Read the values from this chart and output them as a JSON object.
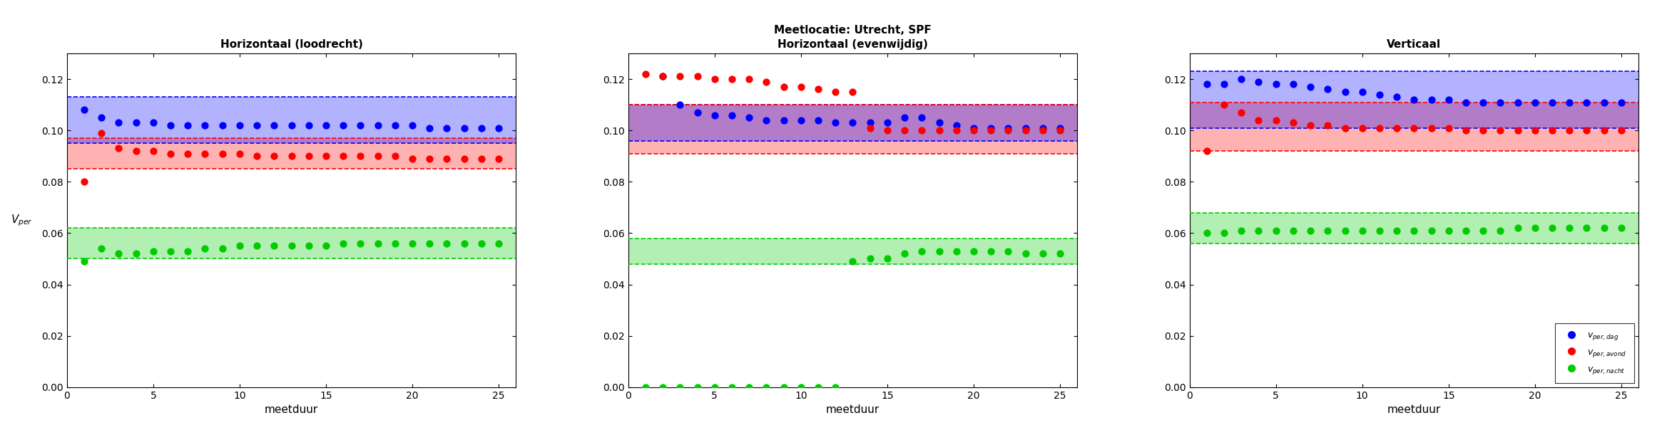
{
  "suptitle_line1": "Meetlocatie: Utrecht, SPF",
  "titles": [
    "Horizontaal (loodrecht)",
    "Horizontaal (evenwijdig)",
    "Verticaal"
  ],
  "xlabel": "meetduur",
  "ylabel": "v_{per}",
  "xlim": [
    0,
    26
  ],
  "ylim": [
    0,
    0.13
  ],
  "yticks": [
    0,
    0.02,
    0.04,
    0.06,
    0.08,
    0.1,
    0.12
  ],
  "xticks": [
    0,
    5,
    10,
    15,
    20,
    25
  ],
  "colors": {
    "blue": "#0000FF",
    "red": "#FF0000",
    "green": "#00CC00"
  },
  "subplot1": {
    "blue_points_x": [
      1,
      2,
      3,
      4,
      5,
      6,
      7,
      8,
      9,
      10,
      11,
      12,
      13,
      14,
      15,
      16,
      17,
      18,
      19,
      20,
      21,
      22,
      23,
      24,
      25
    ],
    "blue_points_y": [
      0.108,
      0.105,
      0.103,
      0.103,
      0.103,
      0.102,
      0.102,
      0.102,
      0.102,
      0.102,
      0.102,
      0.102,
      0.102,
      0.102,
      0.102,
      0.102,
      0.102,
      0.102,
      0.102,
      0.102,
      0.101,
      0.101,
      0.101,
      0.101,
      0.101
    ],
    "red_points_x": [
      1,
      2,
      3,
      4,
      5,
      6,
      7,
      8,
      9,
      10,
      11,
      12,
      13,
      14,
      15,
      16,
      17,
      18,
      19,
      20,
      21,
      22,
      23,
      24,
      25
    ],
    "red_points_y": [
      0.08,
      0.099,
      0.093,
      0.092,
      0.092,
      0.091,
      0.091,
      0.091,
      0.091,
      0.091,
      0.09,
      0.09,
      0.09,
      0.09,
      0.09,
      0.09,
      0.09,
      0.09,
      0.09,
      0.089,
      0.089,
      0.089,
      0.089,
      0.089,
      0.089
    ],
    "green_points_x": [
      1,
      2,
      3,
      4,
      5,
      6,
      7,
      8,
      9,
      10,
      11,
      12,
      13,
      14,
      15,
      16,
      17,
      18,
      19,
      20,
      21,
      22,
      23,
      24,
      25
    ],
    "green_points_y": [
      0.049,
      0.054,
      0.052,
      0.052,
      0.053,
      0.053,
      0.053,
      0.054,
      0.054,
      0.055,
      0.055,
      0.055,
      0.055,
      0.055,
      0.055,
      0.056,
      0.056,
      0.056,
      0.056,
      0.056,
      0.056,
      0.056,
      0.056,
      0.056,
      0.056
    ],
    "blue_band": [
      0.095,
      0.113
    ],
    "red_band": [
      0.085,
      0.097
    ],
    "green_band": [
      0.05,
      0.062
    ]
  },
  "subplot2": {
    "blue_points_x": [
      2,
      3,
      4,
      5,
      6,
      7,
      8,
      9,
      10,
      11,
      12,
      13,
      14,
      15,
      16,
      17,
      18,
      19,
      20,
      21,
      22,
      23,
      24,
      25
    ],
    "blue_points_y": [
      0.121,
      0.11,
      0.107,
      0.106,
      0.106,
      0.105,
      0.104,
      0.104,
      0.104,
      0.104,
      0.103,
      0.103,
      0.103,
      0.103,
      0.105,
      0.105,
      0.103,
      0.102,
      0.101,
      0.101,
      0.101,
      0.101,
      0.101,
      0.101
    ],
    "red_points_x": [
      1,
      2,
      3,
      4,
      5,
      6,
      7,
      8,
      9,
      10,
      11,
      12,
      13,
      14,
      15,
      16,
      17,
      18,
      19,
      20,
      21,
      22,
      23,
      24,
      25
    ],
    "red_points_y": [
      0.122,
      0.121,
      0.121,
      0.121,
      0.12,
      0.12,
      0.12,
      0.119,
      0.117,
      0.117,
      0.116,
      0.115,
      0.115,
      0.101,
      0.1,
      0.1,
      0.1,
      0.1,
      0.1,
      0.1,
      0.1,
      0.1,
      0.1,
      0.1,
      0.1
    ],
    "green_points_x": [
      13,
      14,
      15,
      16,
      17,
      18,
      19,
      20,
      21,
      22,
      23,
      24,
      25
    ],
    "green_points_y": [
      0.049,
      0.05,
      0.05,
      0.052,
      0.053,
      0.053,
      0.053,
      0.053,
      0.053,
      0.053,
      0.052,
      0.052,
      0.052
    ],
    "green_zero_x": [
      1,
      2,
      3,
      4,
      5,
      6,
      7,
      8,
      9,
      10,
      11,
      12
    ],
    "green_zero_y": [
      0.0,
      0.0,
      0.0,
      0.0,
      0.0,
      0.0,
      0.0,
      0.0,
      0.0,
      0.0,
      0.0,
      0.0
    ],
    "blue_band": [
      0.096,
      0.11
    ],
    "red_band": [
      0.091,
      0.11
    ],
    "green_band": [
      0.048,
      0.058
    ]
  },
  "subplot3": {
    "blue_points_x": [
      1,
      2,
      3,
      4,
      5,
      6,
      7,
      8,
      9,
      10,
      11,
      12,
      13,
      14,
      15,
      16,
      17,
      18,
      19,
      20,
      21,
      22,
      23,
      24,
      25
    ],
    "blue_points_y": [
      0.118,
      0.118,
      0.12,
      0.119,
      0.118,
      0.118,
      0.117,
      0.116,
      0.115,
      0.115,
      0.114,
      0.113,
      0.112,
      0.112,
      0.112,
      0.111,
      0.111,
      0.111,
      0.111,
      0.111,
      0.111,
      0.111,
      0.111,
      0.111,
      0.111
    ],
    "red_points_x": [
      1,
      2,
      3,
      4,
      5,
      6,
      7,
      8,
      9,
      10,
      11,
      12,
      13,
      14,
      15,
      16,
      17,
      18,
      19,
      20,
      21,
      22,
      23,
      24,
      25
    ],
    "red_points_y": [
      0.092,
      0.11,
      0.107,
      0.104,
      0.104,
      0.103,
      0.102,
      0.102,
      0.101,
      0.101,
      0.101,
      0.101,
      0.101,
      0.101,
      0.101,
      0.1,
      0.1,
      0.1,
      0.1,
      0.1,
      0.1,
      0.1,
      0.1,
      0.1,
      0.1
    ],
    "green_points_x": [
      1,
      2,
      3,
      4,
      5,
      6,
      7,
      8,
      9,
      10,
      11,
      12,
      13,
      14,
      15,
      16,
      17,
      18,
      19,
      20,
      21,
      22,
      23,
      24,
      25
    ],
    "green_points_y": [
      0.06,
      0.06,
      0.061,
      0.061,
      0.061,
      0.061,
      0.061,
      0.061,
      0.061,
      0.061,
      0.061,
      0.061,
      0.061,
      0.061,
      0.061,
      0.061,
      0.061,
      0.061,
      0.062,
      0.062,
      0.062,
      0.062,
      0.062,
      0.062,
      0.062
    ],
    "blue_band": [
      0.101,
      0.123
    ],
    "red_band": [
      0.092,
      0.111
    ],
    "green_band": [
      0.056,
      0.068
    ]
  },
  "band_alpha": 0.3,
  "dot_size": 55,
  "figsize": [
    23.44,
    6.25
  ],
  "dpi": 100
}
